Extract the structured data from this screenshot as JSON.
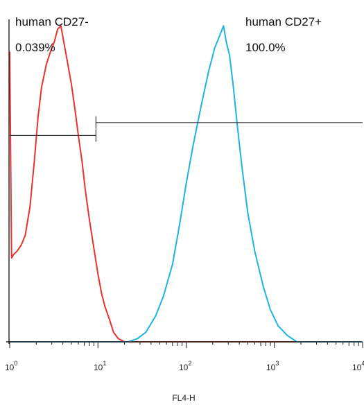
{
  "chart_data": {
    "type": "line",
    "title": "",
    "xlabel": "FL4-H",
    "ylabel": "",
    "x_scale": "log",
    "xlim": [
      1,
      10000
    ],
    "ylim": [
      0,
      100
    ],
    "grid": false,
    "colors": {
      "negative": "#e8322f",
      "positive": "#1fb3e3",
      "gate": "#333333",
      "axis": "#222222"
    },
    "x_ticks": [
      {
        "base": "10",
        "exp": "0",
        "value": 1
      },
      {
        "base": "10",
        "exp": "1",
        "value": 10
      },
      {
        "base": "10",
        "exp": "2",
        "value": 100
      },
      {
        "base": "10",
        "exp": "3",
        "value": 1000
      },
      {
        "base": "10",
        "exp": "4",
        "value": 10000
      }
    ],
    "series": [
      {
        "color_key": "negative",
        "x": [
          1.0,
          1.05,
          1.1,
          1.2,
          1.35,
          1.5,
          1.7,
          1.9,
          2.1,
          2.3,
          2.6,
          2.9,
          3.2,
          3.5,
          3.8,
          4.1,
          4.5,
          5.0,
          5.5,
          6.0,
          6.6,
          7.2,
          8.0,
          9.0,
          10.0,
          11.0,
          12.0,
          13.5,
          15.0,
          17.0,
          20.0,
          30.0,
          100.0,
          1000.0,
          10000.0
        ],
        "y": [
          90,
          26,
          27,
          28,
          30,
          33,
          42,
          56,
          70,
          79,
          86,
          90,
          93,
          97,
          98,
          93,
          87,
          80,
          72,
          64,
          56,
          47,
          38,
          29,
          21,
          15,
          11,
          7,
          3,
          1,
          0,
          0,
          0,
          0,
          0
        ]
      },
      {
        "color_key": "positive",
        "x": [
          1.0,
          10.0,
          18.0,
          22.0,
          28.0,
          35.0,
          45.0,
          55.0,
          70.0,
          85.0,
          100.0,
          120.0,
          150.0,
          180.0,
          210.0,
          240.0,
          265.0,
          285.0,
          310.0,
          340.0,
          380.0,
          430.0,
          500.0,
          600.0,
          750.0,
          900.0,
          1100.0,
          1400.0,
          1800.0,
          2500.0,
          10000.0
        ],
        "y": [
          0,
          0,
          0,
          0,
          1,
          3,
          8,
          14,
          24,
          37,
          49,
          61,
          74,
          84,
          91,
          95,
          98,
          93,
          89,
          80,
          67,
          54,
          40,
          28,
          17,
          10,
          5,
          2,
          0,
          0,
          0
        ]
      }
    ],
    "gates": [
      {
        "name": "human CD27-",
        "value": "0.039%",
        "x_start": 1,
        "x_end": 9.5,
        "y": 64
      },
      {
        "name": "human CD27+",
        "value": "100.0%",
        "x_start": 9.5,
        "x_end": 10000,
        "y": 68
      }
    ]
  }
}
